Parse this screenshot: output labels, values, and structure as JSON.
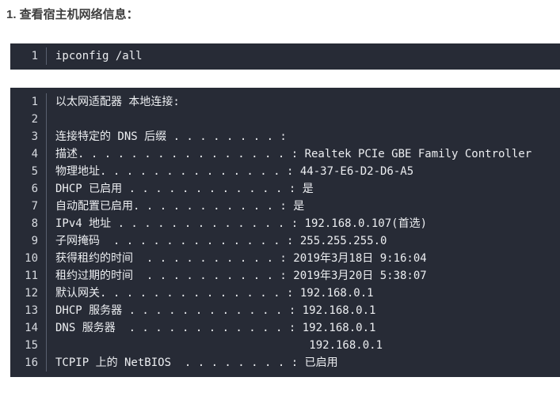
{
  "heading": {
    "text": "1. 查看宿主机网络信息："
  },
  "colors": {
    "page_bg": "#ffffff",
    "heading_text": "#3f3f3f",
    "code_bg": "#272b36",
    "code_text": "#eceef1",
    "line_number": "#d7dae0",
    "gutter_separator": "#5a6070"
  },
  "code_blocks": [
    {
      "name": "command",
      "lines": [
        {
          "n": "1",
          "t": "ipconfig /all"
        }
      ]
    },
    {
      "name": "output",
      "lines": [
        {
          "n": "1",
          "t": "以太网适配器 本地连接:"
        },
        {
          "n": "2",
          "t": ""
        },
        {
          "n": "3",
          "t": "连接特定的 DNS 后缀 . . . . . . . . :"
        },
        {
          "n": "4",
          "t": "描述. . . . . . . . . . . . . . . . : Realtek PCIe GBE Family Controller"
        },
        {
          "n": "5",
          "t": "物理地址. . . . . . . . . . . . . . : 44-37-E6-D2-D6-A5"
        },
        {
          "n": "6",
          "t": "DHCP 已启用 . . . . . . . . . . . . : 是"
        },
        {
          "n": "7",
          "t": "自动配置已启用. . . . . . . . . . . : 是"
        },
        {
          "n": "8",
          "t": "IPv4 地址 . . . . . . . . . . . . . : 192.168.0.107(首选)"
        },
        {
          "n": "9",
          "t": "子网掩码  . . . . . . . . . . . . . : 255.255.255.0"
        },
        {
          "n": "10",
          "t": "获得租约的时间  . . . . . . . . . . : 2019年3月18日 9:16:04"
        },
        {
          "n": "11",
          "t": "租约过期的时间  . . . . . . . . . . : 2019年3月20日 5:38:07"
        },
        {
          "n": "12",
          "t": "默认网关. . . . . . . . . . . . . . : 192.168.0.1"
        },
        {
          "n": "13",
          "t": "DHCP 服务器 . . . . . . . . . . . . : 192.168.0.1"
        },
        {
          "n": "14",
          "t": "DNS 服务器  . . . . . . . . . . . . : 192.168.0.1"
        },
        {
          "n": "15",
          "t": "                                      192.168.0.1"
        },
        {
          "n": "16",
          "t": "TCPIP 上的 NetBIOS  . . . . . . . . : 已启用"
        }
      ]
    }
  ]
}
